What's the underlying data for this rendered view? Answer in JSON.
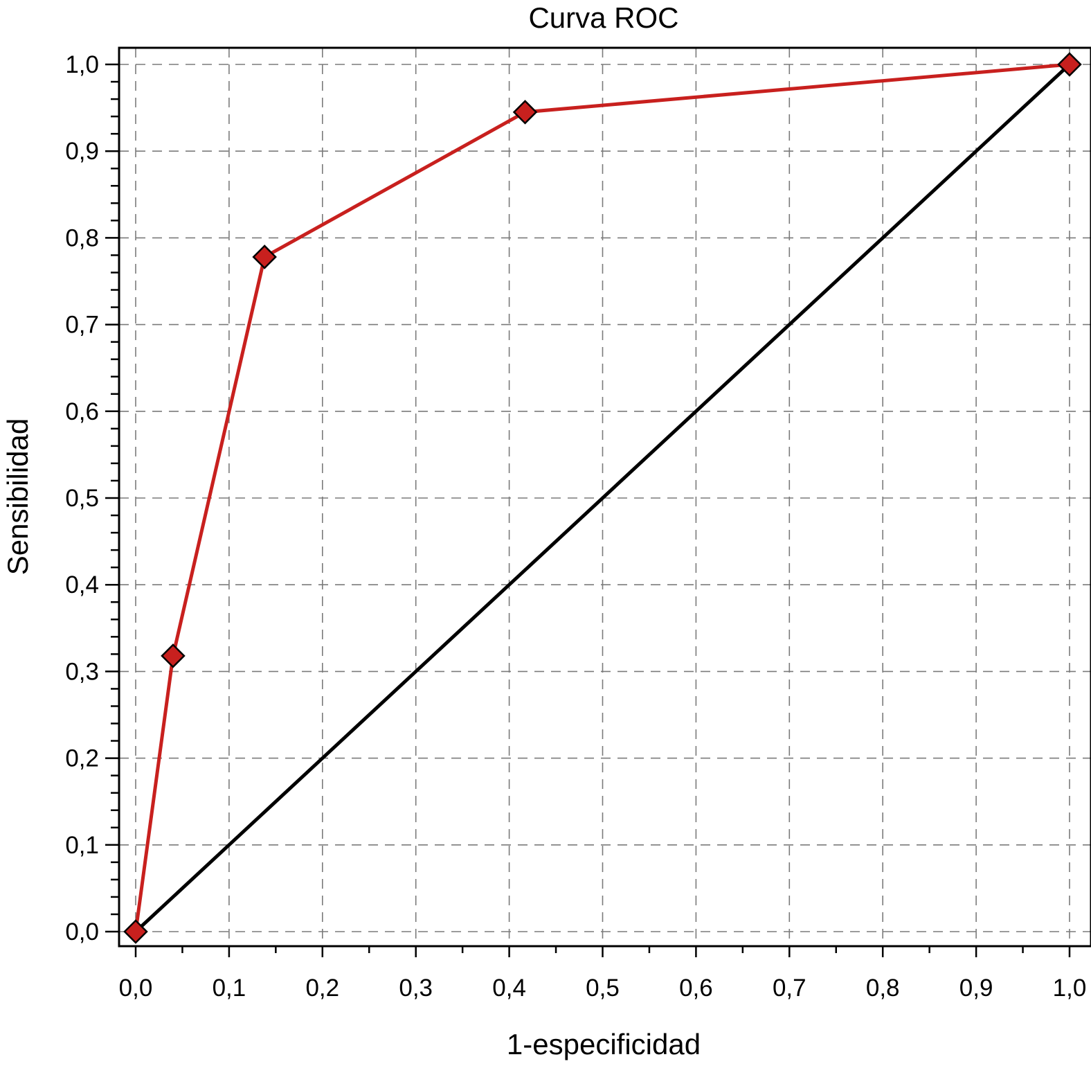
{
  "chart_data": {
    "type": "line",
    "title": "Curva ROC",
    "xlabel": "1-especificidad",
    "ylabel": "Sensibilidad",
    "xlim": [
      0,
      1
    ],
    "ylim": [
      0,
      1
    ],
    "grid": true,
    "grid_style": "dashed",
    "x_ticks": [
      "0,0",
      "0,1",
      "0,2",
      "0,3",
      "0,4",
      "0,5",
      "0,6",
      "0,7",
      "0,8",
      "0,9",
      "1,0"
    ],
    "y_ticks": [
      "0,0",
      "0,1",
      "0,2",
      "0,3",
      "0,4",
      "0,5",
      "0,6",
      "0,7",
      "0,8",
      "0,9",
      "1,0"
    ],
    "series": [
      {
        "color": "#c8201e",
        "marker": "diamond",
        "points": [
          {
            "x": 0.0,
            "y": 0.0
          },
          {
            "x": 0.04,
            "y": 0.318
          },
          {
            "x": 0.138,
            "y": 0.778
          },
          {
            "x": 0.417,
            "y": 0.945
          },
          {
            "x": 1.0,
            "y": 1.0
          }
        ]
      },
      {
        "color": "#000000",
        "marker": "none",
        "points": [
          {
            "x": 0.0,
            "y": 0.0
          },
          {
            "x": 1.0,
            "y": 1.0
          }
        ]
      }
    ]
  }
}
